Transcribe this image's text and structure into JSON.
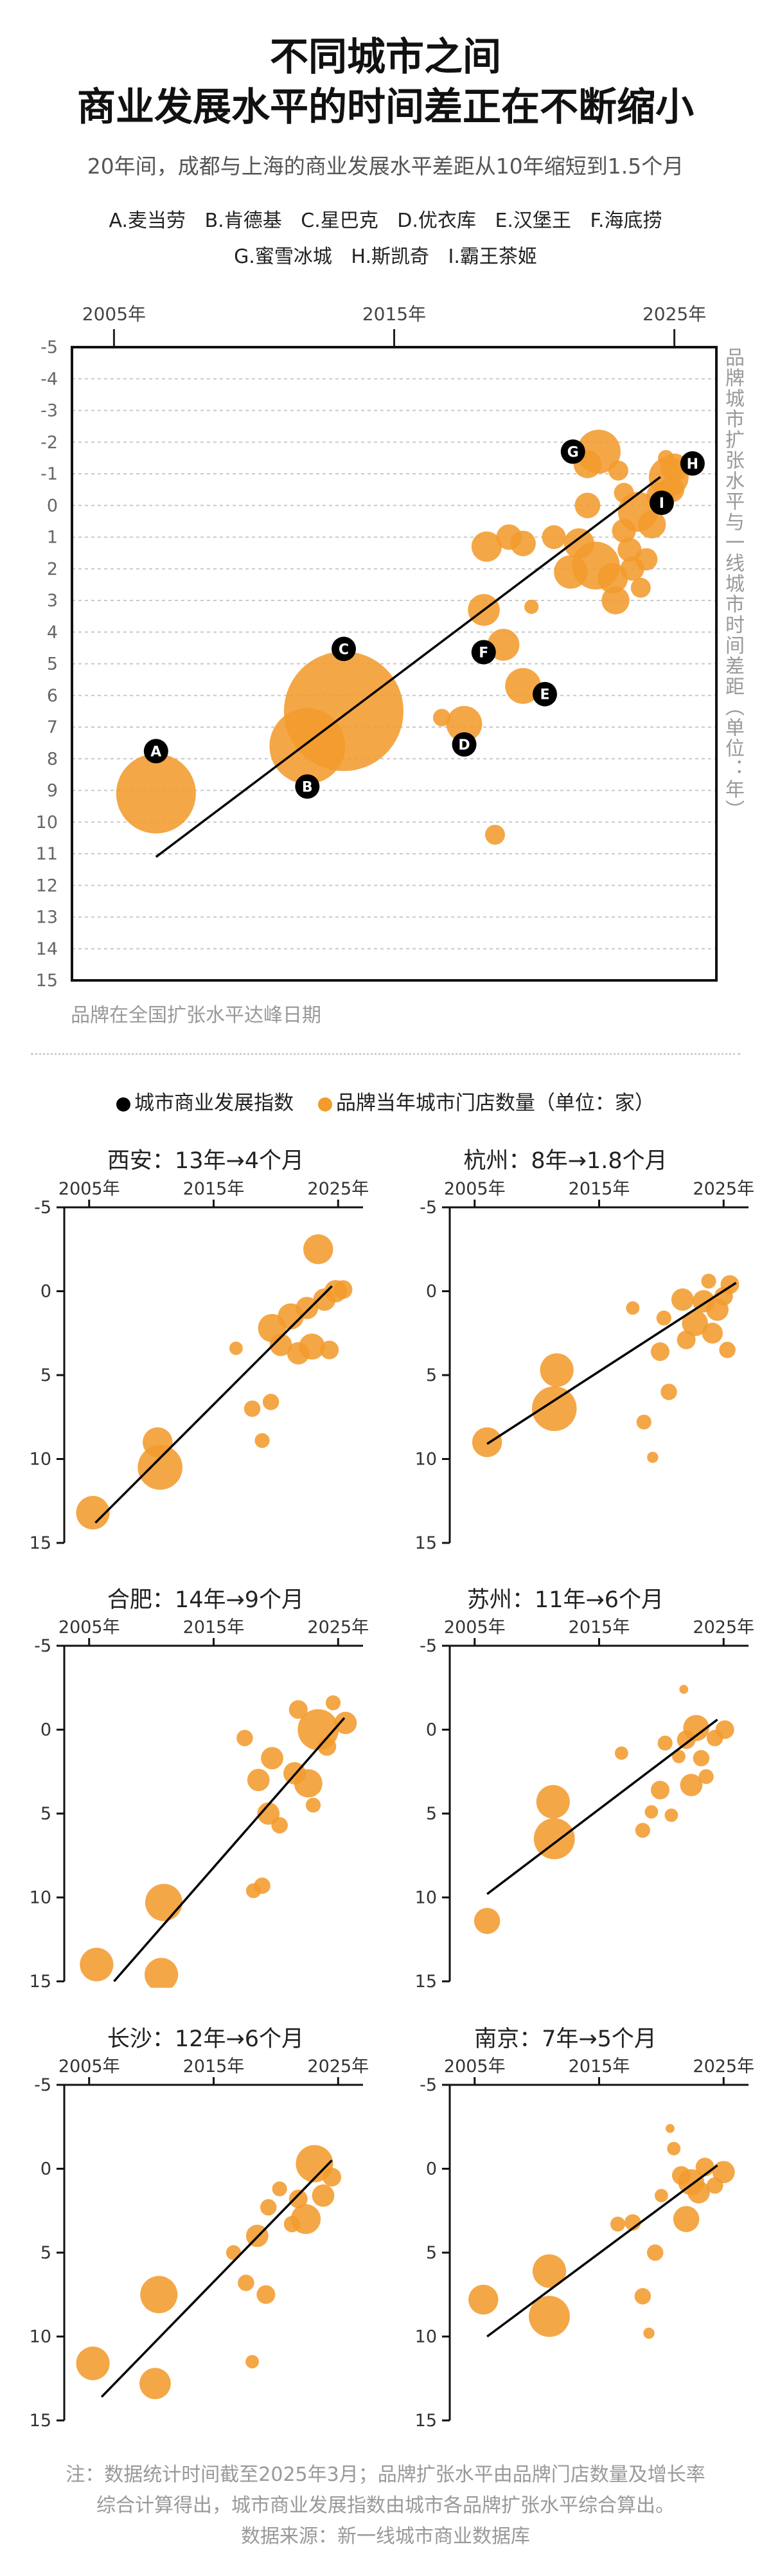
{
  "header": {
    "title_line1": "不同城市之间",
    "title_line2": "商业发展水平的时间差正在不断缩小",
    "subtitle": "20年间，成都与上海的商业发展水平差距从10年缩短到1.5个月"
  },
  "brand_legend": {
    "row1": [
      "A.麦当劳",
      "B.肯德基",
      "C.星巴克",
      "D.优衣库",
      "E.汉堡王",
      "F.海底捞"
    ],
    "row2": [
      "G.蜜雪冰城",
      "H.斯凯奇",
      "I.霸王茶姬"
    ]
  },
  "main_chart": {
    "x_label_note": "品牌在全国扩张水平达峰日期",
    "y_label_right": "品牌城市扩张水平与一线城市时间差距（单位：年）"
  },
  "legend2": {
    "index": "城市商业发展指数",
    "stores": "品牌当年城市门店数量（单位：家）",
    "index_color": "#000000",
    "stores_color": "#f39b2c"
  },
  "footer": {
    "line1": "注：数据统计时间截至2025年3月；品牌扩张水平由品牌门店数量及增长率",
    "line2": "综合计算得出，城市商业发展指数由城市各品牌扩张水平综合算出。",
    "line3": "数据来源：新一线城市商业数据库"
  },
  "chart_data": [
    {
      "type": "scatter",
      "title": "",
      "xlabel": "品牌在全国扩张水平达峰日期",
      "ylabel": "品牌城市扩张水平与一线城市时间差距（单位：年）",
      "x_ticks": [
        "2005年",
        "2015年",
        "2025年"
      ],
      "y_ticks": [
        "-5",
        "-4",
        "-3",
        "-2",
        "-1",
        "0",
        "1",
        "2",
        "3",
        "4",
        "5",
        "6",
        "7",
        "8",
        "9",
        "10",
        "11",
        "12",
        "13",
        "14",
        "15"
      ],
      "xlim": [
        2003.5,
        2026.5
      ],
      "ylim": [
        -5,
        15
      ],
      "y_inverted": true,
      "trend": {
        "x": [
          2006.5,
          2024.5
        ],
        "y": [
          11.1,
          -0.9
        ]
      },
      "labeled_points": [
        {
          "label": "A",
          "x": 2006.5,
          "y": 9.1,
          "size": 1.0
        },
        {
          "label": "B",
          "x": 2011.9,
          "y": 7.6,
          "size": 0.95
        },
        {
          "label": "C",
          "x": 2013.2,
          "y": 6.5,
          "size": 1.5
        },
        {
          "label": "D",
          "x": 2017.5,
          "y": 6.9,
          "size": 0.45
        },
        {
          "label": "E",
          "x": 2019.6,
          "y": 5.7,
          "size": 0.45
        },
        {
          "label": "F",
          "x": 2018.9,
          "y": 4.4,
          "size": 0.4
        },
        {
          "label": "G",
          "x": 2022.3,
          "y": -1.7,
          "size": 0.55
        },
        {
          "label": "H",
          "x": 2024.8,
          "y": -0.9,
          "size": 0.5
        },
        {
          "label": "I",
          "x": 2023.7,
          "y": 0.2,
          "size": 0.5
        }
      ],
      "points": [
        {
          "x": 2016.7,
          "y": 6.7,
          "size": 0.22
        },
        {
          "x": 2018.6,
          "y": 10.4,
          "size": 0.25
        },
        {
          "x": 2018.2,
          "y": 3.3,
          "size": 0.4
        },
        {
          "x": 2018.3,
          "y": 1.3,
          "size": 0.38
        },
        {
          "x": 2019.1,
          "y": 1.0,
          "size": 0.32
        },
        {
          "x": 2019.6,
          "y": 1.2,
          "size": 0.32
        },
        {
          "x": 2019.9,
          "y": 3.2,
          "size": 0.18
        },
        {
          "x": 2020.7,
          "y": 1.0,
          "size": 0.3
        },
        {
          "x": 2021.3,
          "y": 2.1,
          "size": 0.42
        },
        {
          "x": 2021.6,
          "y": 1.2,
          "size": 0.38
        },
        {
          "x": 2021.9,
          "y": -1.3,
          "size": 0.35
        },
        {
          "x": 2021.9,
          "y": 0.0,
          "size": 0.32
        },
        {
          "x": 2022.2,
          "y": 1.9,
          "size": 0.6
        },
        {
          "x": 2022.8,
          "y": 2.3,
          "size": 0.38
        },
        {
          "x": 2022.9,
          "y": 3.0,
          "size": 0.35
        },
        {
          "x": 2023.2,
          "y": 0.8,
          "size": 0.3
        },
        {
          "x": 2023.4,
          "y": 1.4,
          "size": 0.3
        },
        {
          "x": 2023.5,
          "y": 2.0,
          "size": 0.3
        },
        {
          "x": 2023.8,
          "y": 2.6,
          "size": 0.25
        },
        {
          "x": 2024.0,
          "y": 1.7,
          "size": 0.28
        },
        {
          "x": 2024.2,
          "y": 0.6,
          "size": 0.35
        },
        {
          "x": 2024.5,
          "y": -0.3,
          "size": 0.35
        },
        {
          "x": 2024.9,
          "y": -0.5,
          "size": 0.32
        },
        {
          "x": 2025.0,
          "y": -1.2,
          "size": 0.35
        },
        {
          "x": 2023.0,
          "y": -1.1,
          "size": 0.25
        },
        {
          "x": 2023.2,
          "y": -0.4,
          "size": 0.25
        },
        {
          "x": 2024.7,
          "y": -1.5,
          "size": 0.2
        }
      ]
    },
    {
      "type": "scatter",
      "title": "西安：13年→4个月",
      "x_ticks": [
        "2005年",
        "2015年",
        "2025年"
      ],
      "y_ticks": [
        "-5",
        "0",
        "5",
        "10",
        "15"
      ],
      "xlim": [
        2003,
        2027
      ],
      "ylim": [
        -5,
        15
      ],
      "y_inverted": true,
      "trend": {
        "x": [
          2005.5,
          2024.5
        ],
        "y": [
          13.8,
          -0.3
        ]
      },
      "points": [
        {
          "x": 2005.3,
          "y": 13.2,
          "size": 0.45
        },
        {
          "x": 2010.7,
          "y": 10.5,
          "size": 0.6
        },
        {
          "x": 2010.5,
          "y": 9.0,
          "size": 0.4
        },
        {
          "x": 2016.8,
          "y": 3.4,
          "size": 0.18
        },
        {
          "x": 2018.1,
          "y": 7.0,
          "size": 0.22
        },
        {
          "x": 2018.9,
          "y": 8.9,
          "size": 0.2
        },
        {
          "x": 2019.6,
          "y": 6.6,
          "size": 0.22
        },
        {
          "x": 2019.7,
          "y": 2.2,
          "size": 0.38
        },
        {
          "x": 2020.4,
          "y": 3.2,
          "size": 0.3
        },
        {
          "x": 2021.2,
          "y": 1.5,
          "size": 0.35
        },
        {
          "x": 2021.8,
          "y": 3.7,
          "size": 0.3
        },
        {
          "x": 2022.5,
          "y": 1.0,
          "size": 0.3
        },
        {
          "x": 2022.9,
          "y": 3.3,
          "size": 0.35
        },
        {
          "x": 2023.4,
          "y": -2.5,
          "size": 0.4
        },
        {
          "x": 2023.9,
          "y": 0.5,
          "size": 0.3
        },
        {
          "x": 2024.8,
          "y": 0.0,
          "size": 0.3
        },
        {
          "x": 2025.4,
          "y": -0.1,
          "size": 0.25
        },
        {
          "x": 2024.3,
          "y": 3.5,
          "size": 0.25
        }
      ]
    },
    {
      "type": "scatter",
      "title": "杭州：8年→1.8个月",
      "x_ticks": [
        "2005年",
        "2015年",
        "2025年"
      ],
      "y_ticks": [
        "-5",
        "0",
        "5",
        "10",
        "15"
      ],
      "xlim": [
        2003,
        2027
      ],
      "ylim": [
        -5,
        15
      ],
      "y_inverted": true,
      "trend": {
        "x": [
          2006.0,
          2026.0
        ],
        "y": [
          9.1,
          -0.5
        ]
      },
      "points": [
        {
          "x": 2006.0,
          "y": 9.0,
          "size": 0.4
        },
        {
          "x": 2011.4,
          "y": 7.0,
          "size": 0.6
        },
        {
          "x": 2011.6,
          "y": 4.7,
          "size": 0.45
        },
        {
          "x": 2017.7,
          "y": 1.0,
          "size": 0.18
        },
        {
          "x": 2018.6,
          "y": 7.8,
          "size": 0.2
        },
        {
          "x": 2019.3,
          "y": 9.9,
          "size": 0.15
        },
        {
          "x": 2019.9,
          "y": 3.6,
          "size": 0.25
        },
        {
          "x": 2020.2,
          "y": 1.6,
          "size": 0.2
        },
        {
          "x": 2020.6,
          "y": 6.0,
          "size": 0.22
        },
        {
          "x": 2021.7,
          "y": 0.5,
          "size": 0.3
        },
        {
          "x": 2022.0,
          "y": 2.9,
          "size": 0.25
        },
        {
          "x": 2022.7,
          "y": 1.9,
          "size": 0.35
        },
        {
          "x": 2023.4,
          "y": 0.6,
          "size": 0.3
        },
        {
          "x": 2023.8,
          "y": -0.6,
          "size": 0.2
        },
        {
          "x": 2024.1,
          "y": 2.5,
          "size": 0.28
        },
        {
          "x": 2024.5,
          "y": 1.1,
          "size": 0.3
        },
        {
          "x": 2025.0,
          "y": 0.3,
          "size": 0.25
        },
        {
          "x": 2025.5,
          "y": -0.4,
          "size": 0.25
        },
        {
          "x": 2025.3,
          "y": 3.5,
          "size": 0.22
        }
      ]
    },
    {
      "type": "scatter",
      "title": "合肥：14年→9个月",
      "x_ticks": [
        "2005年",
        "2015年",
        "2025年"
      ],
      "y_ticks": [
        "-5",
        "0",
        "5",
        "10",
        "15"
      ],
      "xlim": [
        2003,
        2027
      ],
      "ylim": [
        -5,
        15
      ],
      "y_inverted": true,
      "trend": {
        "x": [
          2007.0,
          2025.5
        ],
        "y": [
          15.0,
          -0.7
        ]
      },
      "points": [
        {
          "x": 2005.6,
          "y": 14.0,
          "size": 0.45
        },
        {
          "x": 2011.0,
          "y": 10.3,
          "size": 0.5
        },
        {
          "x": 2010.8,
          "y": 14.6,
          "size": 0.45
        },
        {
          "x": 2017.5,
          "y": 0.5,
          "size": 0.22
        },
        {
          "x": 2018.2,
          "y": 9.6,
          "size": 0.2
        },
        {
          "x": 2018.9,
          "y": 9.3,
          "size": 0.22
        },
        {
          "x": 2018.6,
          "y": 3.0,
          "size": 0.3
        },
        {
          "x": 2019.4,
          "y": 5.0,
          "size": 0.3
        },
        {
          "x": 2019.7,
          "y": 1.7,
          "size": 0.3
        },
        {
          "x": 2020.3,
          "y": 5.7,
          "size": 0.22
        },
        {
          "x": 2021.5,
          "y": 2.6,
          "size": 0.3
        },
        {
          "x": 2021.8,
          "y": -1.2,
          "size": 0.25
        },
        {
          "x": 2022.6,
          "y": 3.2,
          "size": 0.38
        },
        {
          "x": 2023.0,
          "y": 4.5,
          "size": 0.2
        },
        {
          "x": 2023.4,
          "y": 0.0,
          "size": 0.55
        },
        {
          "x": 2024.1,
          "y": 1.0,
          "size": 0.25
        },
        {
          "x": 2025.6,
          "y": -0.4,
          "size": 0.3
        },
        {
          "x": 2024.6,
          "y": -1.6,
          "size": 0.2
        }
      ]
    },
    {
      "type": "scatter",
      "title": "苏州：11年→6个月",
      "x_ticks": [
        "2005年",
        "2015年",
        "2025年"
      ],
      "y_ticks": [
        "-5",
        "0",
        "5",
        "10",
        "15"
      ],
      "xlim": [
        2003,
        2027
      ],
      "ylim": [
        -5,
        15
      ],
      "y_inverted": true,
      "trend": {
        "x": [
          2006.0,
          2024.5
        ],
        "y": [
          9.8,
          -0.6
        ]
      },
      "points": [
        {
          "x": 2006.0,
          "y": 11.4,
          "size": 0.35
        },
        {
          "x": 2011.4,
          "y": 6.5,
          "size": 0.55
        },
        {
          "x": 2011.3,
          "y": 4.3,
          "size": 0.45
        },
        {
          "x": 2016.8,
          "y": 1.4,
          "size": 0.18
        },
        {
          "x": 2018.5,
          "y": 6.0,
          "size": 0.2
        },
        {
          "x": 2019.2,
          "y": 4.9,
          "size": 0.18
        },
        {
          "x": 2019.9,
          "y": 3.6,
          "size": 0.25
        },
        {
          "x": 2020.3,
          "y": 0.8,
          "size": 0.2
        },
        {
          "x": 2020.8,
          "y": 5.1,
          "size": 0.18
        },
        {
          "x": 2021.4,
          "y": 1.6,
          "size": 0.18
        },
        {
          "x": 2021.8,
          "y": -2.4,
          "size": 0.12
        },
        {
          "x": 2022.0,
          "y": 0.6,
          "size": 0.25
        },
        {
          "x": 2022.4,
          "y": 3.3,
          "size": 0.3
        },
        {
          "x": 2022.8,
          "y": -0.1,
          "size": 0.35
        },
        {
          "x": 2023.2,
          "y": 1.7,
          "size": 0.22
        },
        {
          "x": 2023.6,
          "y": 2.8,
          "size": 0.2
        },
        {
          "x": 2024.3,
          "y": 0.5,
          "size": 0.22
        },
        {
          "x": 2025.1,
          "y": 0.0,
          "size": 0.25
        }
      ]
    },
    {
      "type": "scatter",
      "title": "长沙：12年→6个月",
      "x_ticks": [
        "2005年",
        "2015年",
        "2025年"
      ],
      "y_ticks": [
        "-5",
        "0",
        "5",
        "10",
        "15"
      ],
      "xlim": [
        2003,
        2027
      ],
      "ylim": [
        -5,
        15
      ],
      "y_inverted": true,
      "trend": {
        "x": [
          2006.0,
          2024.5
        ],
        "y": [
          13.6,
          -0.5
        ]
      },
      "points": [
        {
          "x": 2005.3,
          "y": 11.6,
          "size": 0.45
        },
        {
          "x": 2010.3,
          "y": 12.8,
          "size": 0.42
        },
        {
          "x": 2010.6,
          "y": 7.5,
          "size": 0.5
        },
        {
          "x": 2016.6,
          "y": 5.0,
          "size": 0.2
        },
        {
          "x": 2017.6,
          "y": 6.8,
          "size": 0.22
        },
        {
          "x": 2018.1,
          "y": 11.5,
          "size": 0.18
        },
        {
          "x": 2018.5,
          "y": 4.0,
          "size": 0.3
        },
        {
          "x": 2019.2,
          "y": 7.5,
          "size": 0.25
        },
        {
          "x": 2019.4,
          "y": 2.3,
          "size": 0.22
        },
        {
          "x": 2020.3,
          "y": 1.2,
          "size": 0.2
        },
        {
          "x": 2021.3,
          "y": 3.3,
          "size": 0.22
        },
        {
          "x": 2021.8,
          "y": 1.8,
          "size": 0.25
        },
        {
          "x": 2022.4,
          "y": 3.0,
          "size": 0.4
        },
        {
          "x": 2023.1,
          "y": -0.3,
          "size": 0.5
        },
        {
          "x": 2023.8,
          "y": 1.6,
          "size": 0.3
        },
        {
          "x": 2024.5,
          "y": 0.5,
          "size": 0.25
        }
      ]
    },
    {
      "type": "scatter",
      "title": "南京：7年→5个月",
      "x_ticks": [
        "2005年",
        "2015年",
        "2025年"
      ],
      "y_ticks": [
        "-5",
        "0",
        "5",
        "10",
        "15"
      ],
      "xlim": [
        2003,
        2027
      ],
      "ylim": [
        -5,
        15
      ],
      "y_inverted": true,
      "trend": {
        "x": [
          2006.0,
          2024.5
        ],
        "y": [
          10.0,
          -0.2
        ]
      },
      "points": [
        {
          "x": 2005.7,
          "y": 7.8,
          "size": 0.4
        },
        {
          "x": 2011.0,
          "y": 8.8,
          "size": 0.55
        },
        {
          "x": 2011.0,
          "y": 6.1,
          "size": 0.45
        },
        {
          "x": 2016.5,
          "y": 3.3,
          "size": 0.2
        },
        {
          "x": 2017.7,
          "y": 3.2,
          "size": 0.22
        },
        {
          "x": 2018.5,
          "y": 7.6,
          "size": 0.22
        },
        {
          "x": 2019.0,
          "y": 9.8,
          "size": 0.15
        },
        {
          "x": 2019.5,
          "y": 5.0,
          "size": 0.22
        },
        {
          "x": 2020.0,
          "y": 1.6,
          "size": 0.18
        },
        {
          "x": 2020.7,
          "y": -2.4,
          "size": 0.12
        },
        {
          "x": 2021.0,
          "y": -1.2,
          "size": 0.18
        },
        {
          "x": 2021.6,
          "y": 0.4,
          "size": 0.25
        },
        {
          "x": 2022.0,
          "y": 3.0,
          "size": 0.35
        },
        {
          "x": 2022.4,
          "y": 0.8,
          "size": 0.35
        },
        {
          "x": 2023.0,
          "y": 1.4,
          "size": 0.3
        },
        {
          "x": 2023.5,
          "y": -0.1,
          "size": 0.25
        },
        {
          "x": 2024.3,
          "y": 1.0,
          "size": 0.22
        },
        {
          "x": 2025.0,
          "y": 0.2,
          "size": 0.3
        }
      ]
    }
  ]
}
